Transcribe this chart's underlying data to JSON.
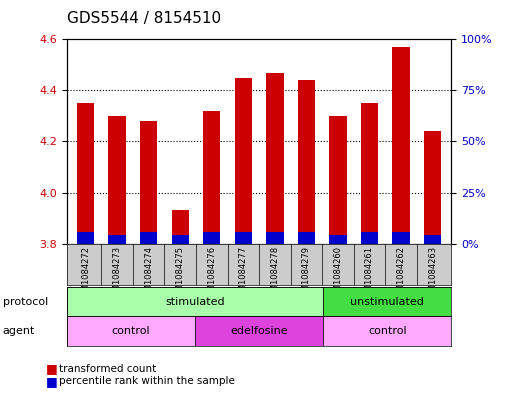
{
  "title": "GDS5544 / 8154510",
  "samples": [
    "GSM1084272",
    "GSM1084273",
    "GSM1084274",
    "GSM1084275",
    "GSM1084276",
    "GSM1084277",
    "GSM1084278",
    "GSM1084279",
    "GSM1084260",
    "GSM1084261",
    "GSM1084262",
    "GSM1084263"
  ],
  "transformed_count": [
    4.35,
    4.3,
    4.28,
    3.93,
    4.32,
    4.45,
    4.47,
    4.44,
    4.3,
    4.35,
    4.57,
    4.24
  ],
  "percentile_rank_bottom": [
    3.8,
    3.8,
    3.8,
    3.8,
    3.8,
    3.8,
    3.8,
    3.8,
    3.8,
    3.8,
    3.8,
    3.8
  ],
  "percentile_rank_top": [
    3.845,
    3.835,
    3.845,
    3.835,
    3.845,
    3.845,
    3.845,
    3.845,
    3.835,
    3.845,
    3.845,
    3.835
  ],
  "bar_color_red": "#cc0000",
  "bar_color_blue": "#0000cc",
  "ylim_left": [
    3.8,
    4.6
  ],
  "ylim_right": [
    0,
    100
  ],
  "right_ticks": [
    0,
    25,
    50,
    75,
    100
  ],
  "right_tick_labels": [
    "0%",
    "25%",
    "50%",
    "75%",
    "100%"
  ],
  "left_ticks": [
    3.8,
    4.0,
    4.2,
    4.4,
    4.6
  ],
  "ytick_color_left": "#cc0000",
  "ytick_color_right": "#0000cc",
  "protocol_groups": [
    {
      "name": "stimulated",
      "start": 0,
      "end": 8,
      "color": "#aaffaa"
    },
    {
      "name": "unstimulated",
      "start": 8,
      "end": 12,
      "color": "#44dd44"
    }
  ],
  "agent_groups": [
    {
      "name": "control",
      "start": 0,
      "end": 4,
      "color": "#ffaaff"
    },
    {
      "name": "edelfosine",
      "start": 4,
      "end": 8,
      "color": "#dd44dd"
    },
    {
      "name": "control",
      "start": 8,
      "end": 12,
      "color": "#ffaaff"
    }
  ],
  "legend_items": [
    {
      "label": "transformed count",
      "color": "#cc0000"
    },
    {
      "label": "percentile rank within the sample",
      "color": "#0000cc"
    }
  ],
  "bar_width": 0.55,
  "background_color": "#ffffff",
  "plot_bg_color": "#ffffff",
  "title_fontsize": 11,
  "xtick_bg_color": "#cccccc"
}
